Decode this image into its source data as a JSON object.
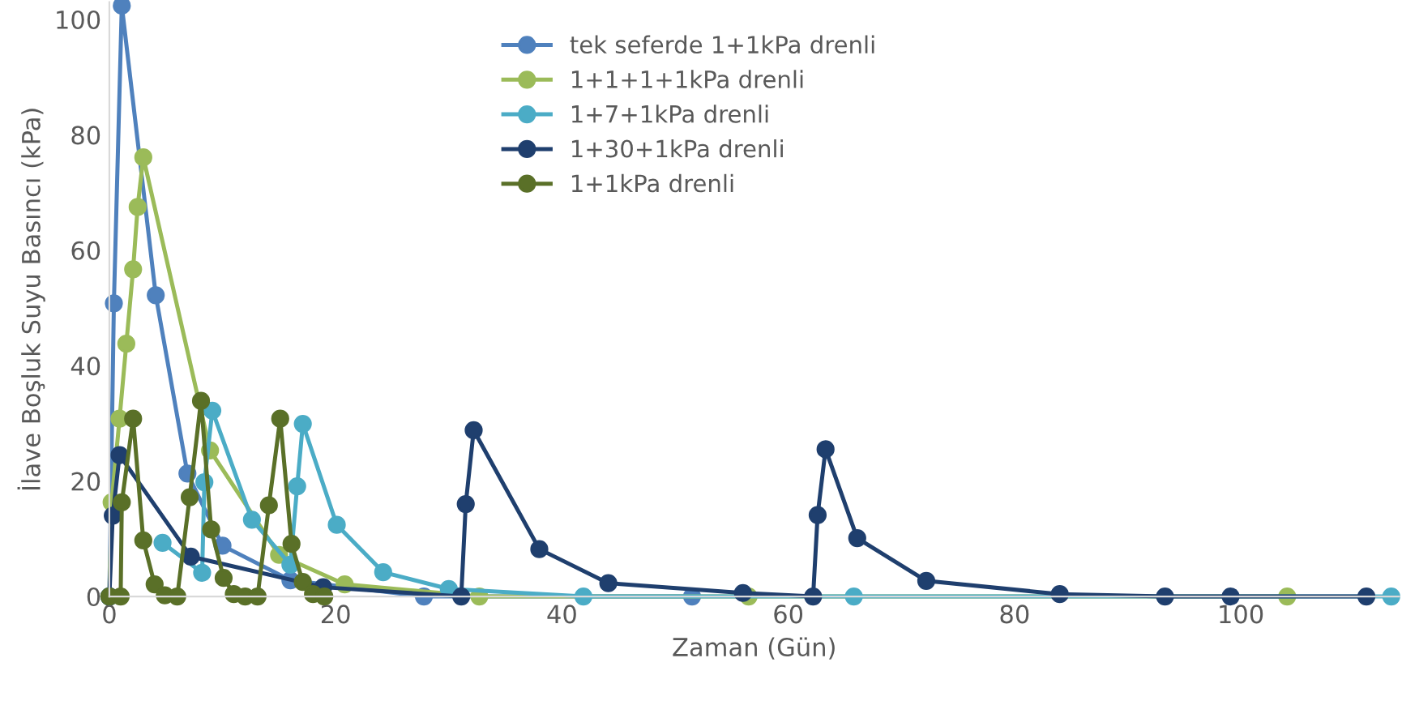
{
  "chart_data": {
    "type": "line",
    "xlabel": "Zaman (Gün)",
    "ylabel": "İlave Boşluk Suyu Basıncı (kPa)",
    "xlim": [
      0,
      114
    ],
    "ylim": [
      0,
      103
    ],
    "xticks": [
      0,
      20,
      40,
      60,
      80,
      100
    ],
    "yticks": [
      0,
      20,
      40,
      60,
      80,
      100
    ],
    "grid": false,
    "legend": "top",
    "marker": "circle",
    "line_style": "solid",
    "series": [
      {
        "name": "tek seferde 1+1kPa drenli",
        "color": "#4f81bd",
        "x": [
          0,
          0.4,
          1.1,
          4.1,
          6.9,
          10.0,
          16.0,
          27.8,
          51.5
        ],
        "values": [
          0,
          50.8,
          102.4,
          52.2,
          21.3,
          8.8,
          2.8,
          0,
          0
        ]
      },
      {
        "name": "1+1+1+1kPa drenli",
        "color": "#9bbb59",
        "x": [
          0,
          0.2,
          0.9,
          1.5,
          2.1,
          2.5,
          3.0,
          8.9,
          15.0,
          20.8,
          32.7,
          56.5,
          104.1
        ],
        "values": [
          0,
          16.3,
          30.8,
          43.8,
          56.7,
          67.5,
          76.1,
          25.3,
          7.2,
          2.1,
          0,
          0,
          0
        ]
      },
      {
        "name": "1+7+1kPa drenli",
        "color": "#4bacc6",
        "x": [
          0,
          1.0,
          4.7,
          8.2,
          8.4,
          9.1,
          12.6,
          16.0,
          16.6,
          17.1,
          20.1,
          24.2,
          30.0,
          41.9,
          65.8,
          113.3
        ],
        "values": [
          0,
          null,
          9.3,
          4.1,
          19.8,
          32.2,
          13.3,
          5.5,
          19.1,
          29.9,
          12.4,
          4.2,
          1.3,
          0,
          0,
          0
        ]
      },
      {
        "name": "1+30+1kPa drenli",
        "color": "#1f3f6e",
        "x": [
          0,
          0.3,
          0.9,
          7.2,
          18.9,
          31.1,
          31.5,
          32.2,
          38.0,
          44.1,
          56.0,
          62.2,
          62.6,
          63.3,
          66.1,
          72.2,
          84.0,
          93.3,
          99.1,
          111.1
        ],
        "values": [
          0,
          14.0,
          24.5,
          6.9,
          1.6,
          0,
          16.0,
          28.8,
          8.2,
          2.3,
          0.6,
          0,
          14.1,
          25.5,
          10.1,
          2.7,
          0.4,
          0,
          0,
          0
        ]
      },
      {
        "name": "1+1kPa drenli",
        "color": "#5a7028",
        "x": [
          0,
          1.0,
          1.1,
          2.1,
          3.0,
          4.0,
          4.9,
          6.0,
          7.1,
          8.1,
          9.0,
          10.1,
          11.0,
          12.0,
          13.1,
          14.1,
          15.1,
          16.1,
          17.1,
          18.0,
          19.0
        ],
        "values": [
          0,
          0,
          16.3,
          30.8,
          9.7,
          2.1,
          0.2,
          0,
          17.2,
          33.9,
          11.6,
          3.2,
          0.4,
          0,
          0,
          15.8,
          30.8,
          9.1,
          2.5,
          0.4,
          0
        ]
      }
    ]
  }
}
